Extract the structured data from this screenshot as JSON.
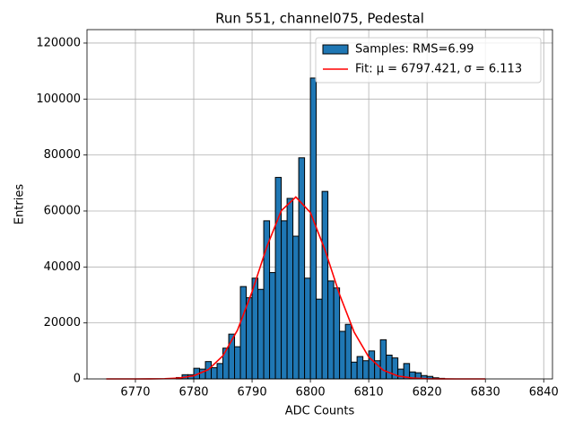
{
  "chart_data": {
    "type": "histogram",
    "title": "Run 551, channel075, Pedestal",
    "x_label": "ADC Counts",
    "y_label": "Entries",
    "bins": [
      6777,
      6778,
      6779,
      6780,
      6781,
      6782,
      6783,
      6784,
      6785,
      6786,
      6787,
      6788,
      6789,
      6790,
      6791,
      6792,
      6793,
      6794,
      6795,
      6796,
      6797,
      6798,
      6799,
      6800,
      6801,
      6802,
      6803,
      6804,
      6805,
      6806,
      6807,
      6808,
      6809,
      6810,
      6811,
      6812,
      6813,
      6814,
      6815,
      6816,
      6817,
      6818,
      6819,
      6820,
      6821,
      6822,
      6823
    ],
    "series": [
      {
        "name": "Samples: RMS=6.99",
        "color": "#1f77b4",
        "values": [
          500,
          1500,
          1500,
          3800,
          3500,
          6200,
          4000,
          5500,
          11000,
          16000,
          11500,
          33000,
          29000,
          36000,
          32000,
          56500,
          38000,
          72000,
          56500,
          64500,
          51000,
          79000,
          36000,
          107500,
          28500,
          67000,
          35000,
          32500,
          17000,
          19500,
          6000,
          8000,
          6500,
          10000,
          6500,
          14000,
          8500,
          7500,
          3500,
          5500,
          2500,
          2200,
          1200,
          900,
          400,
          200
        ]
      }
    ],
    "fit": {
      "name": "Fit: μ = 6797.421, σ = 6.113",
      "color": "#ff0000",
      "x": [
        6765,
        6767.5,
        6770,
        6772.5,
        6775,
        6777.5,
        6780,
        6782.5,
        6785,
        6787.5,
        6790,
        6792.5,
        6795,
        6797.5,
        6800,
        6802.5,
        6805,
        6807.5,
        6810,
        6812.5,
        6815,
        6817.5,
        6820,
        6822.5,
        6825,
        6827.5,
        6830
      ],
      "values": [
        0,
        0,
        3,
        16,
        78,
        321,
        1122,
        3313,
        8257,
        17435,
        31137,
        47049,
        60100,
        65000,
        59460,
        46060,
        30150,
        16700,
        7820,
        3100,
        1040,
        295,
        71,
        14,
        2,
        0,
        0
      ]
    },
    "xlim": [
      6761.7,
      6841.5
    ],
    "ylim": [
      0,
      124800
    ],
    "xticks": [
      6770,
      6780,
      6790,
      6800,
      6810,
      6820,
      6830,
      6840
    ],
    "yticks": [
      0,
      20000,
      40000,
      60000,
      80000,
      100000,
      120000
    ],
    "grid": true,
    "legend": "upper right"
  }
}
